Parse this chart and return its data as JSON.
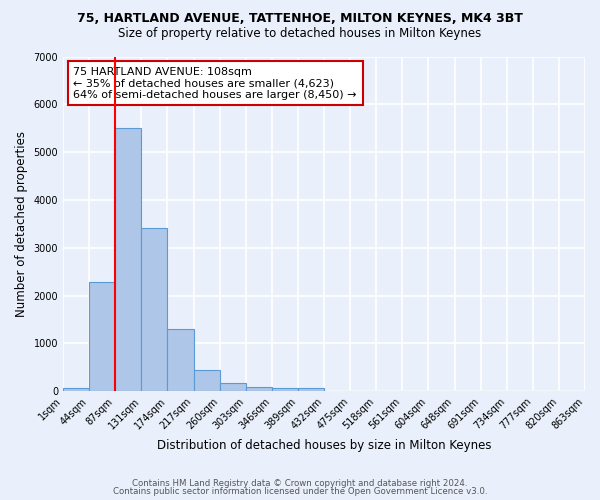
{
  "title": "75, HARTLAND AVENUE, TATTENHOE, MILTON KEYNES, MK4 3BT",
  "subtitle": "Size of property relative to detached houses in Milton Keynes",
  "xlabel": "Distribution of detached houses by size in Milton Keynes",
  "ylabel": "Number of detached properties",
  "bar_values": [
    75,
    2280,
    5500,
    3420,
    1310,
    450,
    175,
    90,
    60,
    60,
    0,
    0,
    0,
    0,
    0,
    0,
    0,
    0,
    0,
    0
  ],
  "bin_labels": [
    "1sqm",
    "44sqm",
    "87sqm",
    "131sqm",
    "174sqm",
    "217sqm",
    "260sqm",
    "303sqm",
    "346sqm",
    "389sqm",
    "432sqm",
    "475sqm",
    "518sqm",
    "561sqm",
    "604sqm",
    "648sqm",
    "691sqm",
    "734sqm",
    "777sqm",
    "820sqm",
    "863sqm"
  ],
  "bar_color": "#aec6e8",
  "bar_edge_color": "#5b9bd5",
  "bg_color": "#eaf0fb",
  "grid_color": "#ffffff",
  "red_line_bin_index": 2,
  "annotation_text": "75 HARTLAND AVENUE: 108sqm\n← 35% of detached houses are smaller (4,623)\n64% of semi-detached houses are larger (8,450) →",
  "annotation_box_color": "#ffffff",
  "annotation_box_edge": "#cc0000",
  "footer_line1": "Contains HM Land Registry data © Crown copyright and database right 2024.",
  "footer_line2": "Contains public sector information licensed under the Open Government Licence v3.0.",
  "ylim": [
    0,
    7000
  ],
  "figsize": [
    6.0,
    5.0
  ],
  "dpi": 100
}
